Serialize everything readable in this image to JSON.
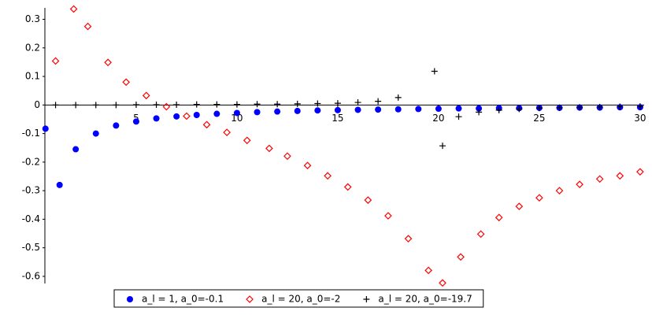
{
  "chart_data": {
    "type": "scatter",
    "xlim": [
      0.47,
      30.2
    ],
    "ylim": [
      -0.625,
      0.34
    ],
    "xticks": [
      5,
      10,
      15,
      20,
      25,
      30
    ],
    "yticks": [
      -0.6,
      -0.5,
      -0.4,
      -0.3,
      -0.2,
      -0.1,
      0,
      0.1,
      0.2,
      0.3
    ],
    "legend": "bottom",
    "series": [
      {
        "name": "a_l = 1, a_0=-0.1",
        "color": "#0000ff",
        "marker": "circle",
        "x": [
          0.5,
          1.2,
          2,
          3,
          4,
          5,
          6,
          7,
          8,
          9,
          10,
          11,
          12,
          13,
          14,
          15,
          16,
          17,
          18,
          19,
          20,
          21,
          22,
          23,
          24,
          25,
          26,
          27,
          28,
          29,
          30
        ],
        "values": [
          -0.083,
          -0.28,
          -0.155,
          -0.1,
          -0.072,
          -0.058,
          -0.047,
          -0.04,
          -0.035,
          -0.031,
          -0.028,
          -0.025,
          -0.023,
          -0.021,
          -0.019,
          -0.018,
          -0.017,
          -0.016,
          -0.015,
          -0.014,
          -0.013,
          -0.012,
          -0.012,
          -0.011,
          -0.011,
          -0.01,
          -0.01,
          -0.009,
          -0.009,
          -0.008,
          -0.008
        ]
      },
      {
        "name": "a_l = 20, a_0=-2",
        "color": "#ff0000",
        "marker": "diamond",
        "x": [
          1.0,
          1.9,
          2.6,
          3.6,
          4.5,
          5.5,
          6.5,
          7.5,
          8.5,
          9.5,
          10.5,
          11.6,
          12.5,
          13.5,
          14.5,
          15.5,
          16.5,
          17.5,
          18.5,
          19.5,
          20.2,
          21.1,
          22.1,
          23.0,
          24.0,
          25.0,
          26.0,
          27.0,
          28.0,
          29.0,
          30.0
        ],
        "values": [
          0.154,
          0.336,
          0.275,
          0.149,
          0.08,
          0.033,
          -0.006,
          -0.039,
          -0.069,
          -0.096,
          -0.124,
          -0.152,
          -0.179,
          -0.212,
          -0.248,
          -0.287,
          -0.333,
          -0.388,
          -0.468,
          -0.579,
          -0.623,
          -0.532,
          -0.452,
          -0.394,
          -0.355,
          -0.325,
          -0.3,
          -0.278,
          -0.259,
          -0.248,
          -0.234
        ]
      },
      {
        "name": "a_l = 20, a_0=-19.7",
        "color": "#000000",
        "marker": "plus",
        "x": [
          1,
          2,
          3,
          4,
          5,
          6,
          7,
          8,
          9,
          10,
          11,
          12,
          13,
          14,
          15,
          16,
          17,
          18,
          19.8,
          20.2,
          21,
          22,
          23,
          24,
          25,
          26,
          27,
          28,
          29,
          30
        ],
        "values": [
          0,
          0,
          0,
          0,
          0.001,
          0.001,
          0.001,
          0.002,
          0.002,
          0.002,
          0.003,
          0.003,
          0.004,
          0.005,
          0.006,
          0.009,
          0.013,
          0.026,
          0.118,
          -0.143,
          -0.041,
          -0.025,
          -0.018,
          -0.014,
          -0.011,
          -0.009,
          -0.008,
          -0.007,
          -0.006,
          -0.005
        ]
      }
    ]
  }
}
